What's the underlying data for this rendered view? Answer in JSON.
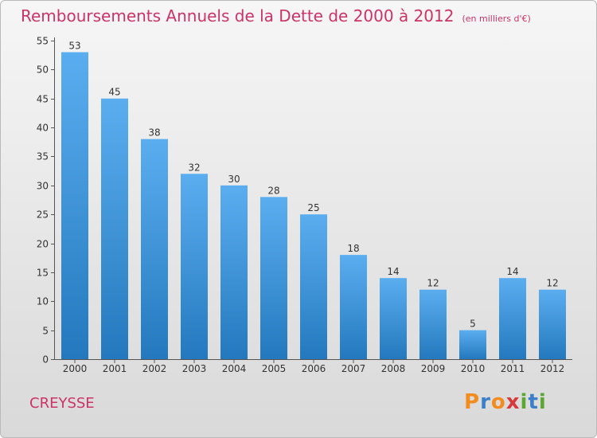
{
  "header": {
    "title": "Remboursements Annuels de la Dette de 2000 à 2012",
    "unit": "(en milliers d'€)"
  },
  "footer": {
    "place": "CREYSSE",
    "logo_text": "Proxiti"
  },
  "colors": {
    "title": "#cc3366",
    "bar_top": "#5aaef0",
    "bar_bottom": "#2478bd",
    "logo_letters": [
      "#f28c1e",
      "#3b7fc9",
      "#f28c1e",
      "#d63a3a",
      "#5aa832",
      "#3b7fc9",
      "#5aa832"
    ]
  },
  "chart_data": {
    "type": "bar",
    "title": "Remboursements Annuels de la Dette de 2000 à 2012",
    "subtitle": "(en milliers d'€)",
    "xlabel": "",
    "ylabel": "",
    "categories": [
      "2000",
      "2001",
      "2002",
      "2003",
      "2004",
      "2005",
      "2006",
      "2007",
      "2008",
      "2009",
      "2010",
      "2011",
      "2012"
    ],
    "values": [
      53,
      45,
      38,
      32,
      30,
      28,
      25,
      18,
      14,
      12,
      5,
      14,
      12
    ],
    "ylim": [
      0,
      55
    ],
    "yticks": [
      0,
      5,
      10,
      15,
      20,
      25,
      30,
      35,
      40,
      45,
      50,
      55
    ],
    "grid": false,
    "data_labels": true
  }
}
